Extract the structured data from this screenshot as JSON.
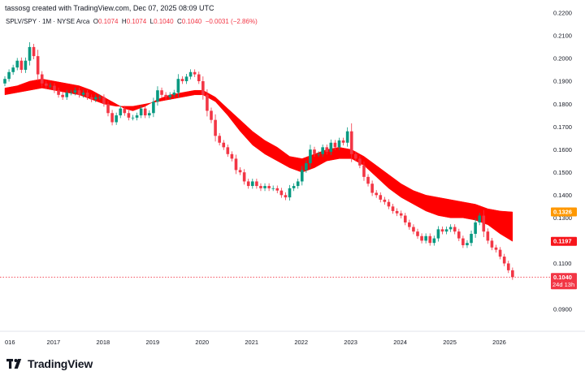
{
  "header": {
    "caption": "tassosg created with TradingView.com, Dec 07, 2025 08:09 UTC"
  },
  "legend": {
    "symbol": "SPLV/SPY · 1M · NYSE Arca",
    "o_label": "O",
    "o": "0.1074",
    "h_label": "H",
    "h": "0.1074",
    "l_label": "L",
    "l": "0.1040",
    "c_label": "C",
    "c": "0.1040",
    "change": "−0.0031 (−2.86%)"
  },
  "branding": {
    "name": "TradingView"
  },
  "badges": {
    "fast_ma": "0.1326",
    "slow_ma": "0.1197",
    "price": "0.1040",
    "countdown": "24d 13h"
  },
  "colors": {
    "up": "#089981",
    "down": "#f23645",
    "ribbon": "#ff0000",
    "fast_badge": "#ff9800",
    "slow_badge": "#f7151b",
    "price_badge": "#f23645"
  },
  "chart_data": {
    "type": "candlestick",
    "interval": "1M",
    "ylim": [
      0.0845,
      0.2235
    ],
    "y_ticks": [
      "0.2200",
      "0.2100",
      "0.2000",
      "0.1900",
      "0.1800",
      "0.1700",
      "0.1600",
      "0.1500",
      "0.1400",
      "0.1300",
      "0.1100",
      "0.0900"
    ],
    "x_ticks": [
      "016",
      "2017",
      "2018",
      "2019",
      "2020",
      "2021",
      "2022",
      "2023",
      "2024",
      "2025",
      "2026"
    ],
    "grid": false,
    "last_close": 0.104,
    "fast_ma_last": 0.1326,
    "slow_ma_last": 0.1197,
    "close": [
      0.191,
      0.194,
      0.196,
      0.199,
      0.195,
      0.199,
      0.205,
      0.201,
      0.193,
      0.189,
      0.188,
      0.188,
      0.186,
      0.184,
      0.183,
      0.185,
      0.185,
      0.186,
      0.184,
      0.185,
      0.183,
      0.182,
      0.183,
      0.183,
      0.18,
      0.176,
      0.172,
      0.175,
      0.178,
      0.176,
      0.174,
      0.174,
      0.175,
      0.178,
      0.175,
      0.176,
      0.181,
      0.186,
      0.184,
      0.183,
      0.184,
      0.185,
      0.191,
      0.19,
      0.192,
      0.194,
      0.193,
      0.19,
      0.184,
      0.177,
      0.173,
      0.166,
      0.163,
      0.161,
      0.158,
      0.156,
      0.151,
      0.15,
      0.146,
      0.144,
      0.146,
      0.144,
      0.143,
      0.144,
      0.143,
      0.143,
      0.142,
      0.14,
      0.139,
      0.143,
      0.144,
      0.146,
      0.151,
      0.154,
      0.16,
      0.158,
      0.158,
      0.161,
      0.159,
      0.163,
      0.161,
      0.164,
      0.163,
      0.168,
      0.158,
      0.156,
      0.153,
      0.148,
      0.145,
      0.141,
      0.14,
      0.138,
      0.137,
      0.135,
      0.133,
      0.132,
      0.131,
      0.128,
      0.126,
      0.124,
      0.122,
      0.12,
      0.122,
      0.119,
      0.121,
      0.125,
      0.124,
      0.125,
      0.126,
      0.124,
      0.121,
      0.118,
      0.119,
      0.123,
      0.128,
      0.131,
      0.124,
      0.12,
      0.117,
      0.116,
      0.113,
      0.11,
      0.107,
      0.104
    ],
    "fast_ma": [
      [
        0,
        0.187
      ],
      [
        3,
        0.188
      ],
      [
        6,
        0.19
      ],
      [
        9,
        0.191
      ],
      [
        12,
        0.19
      ],
      [
        15,
        0.189
      ],
      [
        18,
        0.188
      ],
      [
        21,
        0.186
      ],
      [
        24,
        0.183
      ],
      [
        27,
        0.18
      ],
      [
        29,
        0.178
      ],
      [
        31,
        0.177
      ],
      [
        34,
        0.179
      ],
      [
        37,
        0.182
      ],
      [
        40,
        0.184
      ],
      [
        43,
        0.185
      ],
      [
        46,
        0.186
      ],
      [
        48,
        0.186
      ],
      [
        51,
        0.183
      ],
      [
        54,
        0.178
      ],
      [
        57,
        0.173
      ],
      [
        60,
        0.168
      ],
      [
        63,
        0.164
      ],
      [
        66,
        0.161
      ],
      [
        69,
        0.157
      ],
      [
        72,
        0.156
      ],
      [
        75,
        0.158
      ],
      [
        78,
        0.16
      ],
      [
        81,
        0.161
      ],
      [
        84,
        0.16
      ],
      [
        87,
        0.157
      ],
      [
        90,
        0.153
      ],
      [
        93,
        0.149
      ],
      [
        96,
        0.145
      ],
      [
        99,
        0.142
      ],
      [
        102,
        0.14
      ],
      [
        105,
        0.139
      ],
      [
        108,
        0.138
      ],
      [
        111,
        0.137
      ],
      [
        114,
        0.136
      ],
      [
        117,
        0.134
      ],
      [
        120,
        0.133
      ],
      [
        123,
        0.1326
      ]
    ],
    "slow_ma": [
      [
        0,
        0.184
      ],
      [
        3,
        0.185
      ],
      [
        6,
        0.186
      ],
      [
        9,
        0.187
      ],
      [
        12,
        0.186
      ],
      [
        15,
        0.185
      ],
      [
        18,
        0.184
      ],
      [
        21,
        0.182
      ],
      [
        24,
        0.18
      ],
      [
        27,
        0.179
      ],
      [
        29,
        0.179
      ],
      [
        31,
        0.179
      ],
      [
        34,
        0.18
      ],
      [
        37,
        0.181
      ],
      [
        40,
        0.182
      ],
      [
        43,
        0.183
      ],
      [
        46,
        0.184
      ],
      [
        48,
        0.184
      ],
      [
        51,
        0.181
      ],
      [
        54,
        0.175
      ],
      [
        57,
        0.168
      ],
      [
        60,
        0.162
      ],
      [
        63,
        0.158
      ],
      [
        66,
        0.155
      ],
      [
        69,
        0.152
      ],
      [
        72,
        0.15
      ],
      [
        75,
        0.152
      ],
      [
        78,
        0.155
      ],
      [
        81,
        0.156
      ],
      [
        84,
        0.156
      ],
      [
        87,
        0.153
      ],
      [
        90,
        0.148
      ],
      [
        93,
        0.143
      ],
      [
        96,
        0.139
      ],
      [
        99,
        0.136
      ],
      [
        102,
        0.133
      ],
      [
        105,
        0.131
      ],
      [
        108,
        0.13
      ],
      [
        111,
        0.13
      ],
      [
        114,
        0.129
      ],
      [
        117,
        0.127
      ],
      [
        120,
        0.123
      ],
      [
        123,
        0.1197
      ]
    ]
  }
}
